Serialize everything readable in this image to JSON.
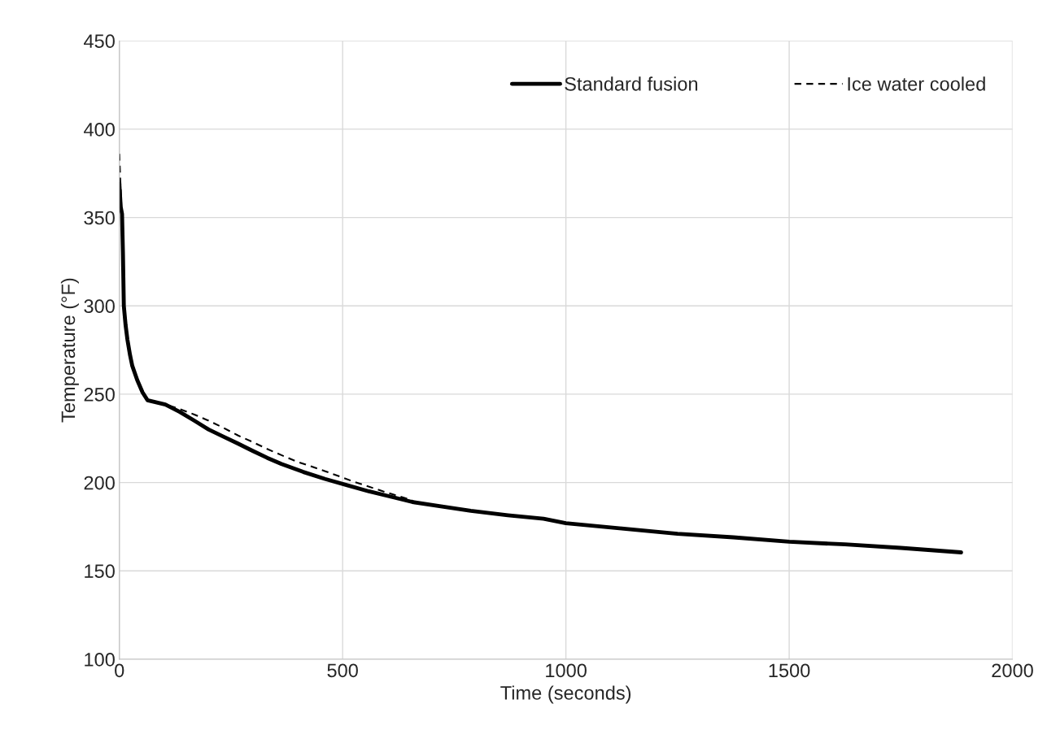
{
  "chart_data": {
    "type": "line",
    "xlabel": "Time (seconds)",
    "ylabel": "Temperature (°F)",
    "xlim": [
      0,
      2000
    ],
    "xticks": [
      0,
      500,
      1000,
      1500,
      2000
    ],
    "ylim": [
      100,
      450
    ],
    "yticks": [
      100,
      150,
      200,
      250,
      300,
      350,
      400,
      450
    ],
    "grid": true,
    "legend": "top right",
    "marker": "none",
    "series": [
      {
        "name": "Standard fusion",
        "color": "#000000",
        "line_style": "solid",
        "x": [
          0,
          3,
          6,
          8,
          10,
          14,
          18,
          24,
          29,
          40,
          52,
          63,
          103,
          135,
          168,
          200,
          233,
          266,
          298,
          331,
          363,
          412,
          461,
          510,
          559,
          608,
          656,
          720,
          787,
          870,
          950,
          1000,
          1125,
          1250,
          1375,
          1500,
          1625,
          1750,
          1885
        ],
        "values": [
          369,
          356,
          352,
          330,
          300,
          289,
          281,
          272,
          266,
          258,
          251,
          246.6,
          244.2,
          240,
          235,
          230,
          226,
          222,
          218,
          214,
          210.5,
          206,
          202,
          198.5,
          195,
          192,
          189,
          186.5,
          184,
          181.5,
          179.5,
          177,
          174,
          171,
          169,
          166.5,
          165,
          163,
          160.5
        ]
      },
      {
        "name": "Ice water cooled",
        "color": "#000000",
        "line_style": "dashed",
        "x": [
          0,
          2,
          4,
          8,
          10,
          18,
          29,
          52,
          63,
          103,
          135,
          168,
          200,
          233,
          266,
          298,
          331,
          363,
          396,
          461,
          526,
          591,
          656
        ],
        "values": [
          386,
          372,
          360,
          330,
          300,
          281,
          266,
          251,
          246.6,
          244.2,
          241.6,
          238.5,
          235,
          231,
          226.6,
          223,
          219,
          215.5,
          212,
          206.4,
          200.4,
          195,
          190
        ]
      }
    ]
  }
}
